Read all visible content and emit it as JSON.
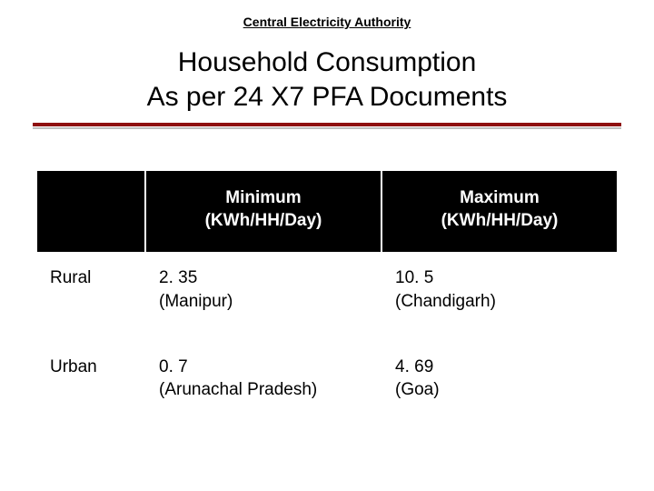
{
  "header": {
    "kicker": "Central Electricity Authority",
    "title_line1": "Household Consumption",
    "title_line2": "As per 24 X7 PFA Documents"
  },
  "colors": {
    "rule_red": "#8e0f0f",
    "rule_grey": "#bfbfbf",
    "header_bg": "#000000",
    "header_fg": "#ffffff",
    "corner_bg": "#c0c0c0",
    "rowlabel_bg": "#d9d9d9",
    "cell_bg": "#ffffff",
    "text": "#000000"
  },
  "table": {
    "columns": {
      "c1": {
        "line1": "Minimum",
        "line2": "(KWh/HH/Day)"
      },
      "c2": {
        "line1": "Maximum",
        "line2": "(KWh/HH/Day)"
      }
    },
    "rows": {
      "r1": {
        "label": "Rural",
        "min": {
          "line1": "2. 35",
          "line2": "(Manipur)"
        },
        "max": {
          "line1": "10. 5",
          "line2": "(Chandigarh)"
        }
      },
      "r2": {
        "label": "Urban",
        "min": {
          "line1": "0. 7",
          "line2": "(Arunachal Pradesh)"
        },
        "max": {
          "line1": "4. 69",
          "line2": "(Goa)"
        }
      }
    }
  }
}
